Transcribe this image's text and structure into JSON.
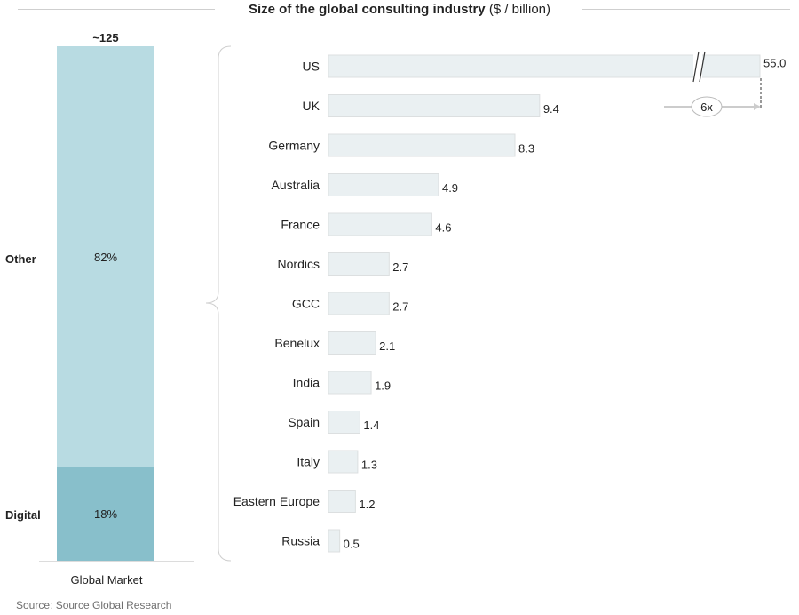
{
  "title": {
    "bold": "Size of the global consulting industry",
    "unit": "($ / billion)"
  },
  "chart_data": [
    {
      "type": "bar",
      "stacked": true,
      "category": "Global Market",
      "total_label": "~125",
      "series": [
        {
          "name": "Other",
          "value": 82,
          "label": "82%",
          "color": "#b8dbe2"
        },
        {
          "name": "Digital",
          "value": 18,
          "label": "18%",
          "color": "#88bfcb"
        }
      ]
    },
    {
      "type": "bar",
      "orientation": "horizontal",
      "categories": [
        "US",
        "UK",
        "Germany",
        "Australia",
        "France",
        "Nordics",
        "GCC",
        "Benelux",
        "India",
        "Spain",
        "Italy",
        "Eastern Europe",
        "Russia"
      ],
      "values": [
        55.0,
        9.4,
        8.3,
        4.9,
        4.6,
        2.7,
        2.7,
        2.1,
        1.9,
        1.4,
        1.3,
        1.2,
        0.5
      ],
      "labels": [
        "55.0",
        "9.4",
        "8.3",
        "4.9",
        "4.6",
        "2.7",
        "2.7",
        "2.1",
        "1.9",
        "1.4",
        "1.3",
        "1.2",
        "0.5"
      ],
      "axis_break": true,
      "annotation": "6x",
      "bar_color": "#eaf0f2"
    }
  ],
  "source": "Source: Source Global Research"
}
